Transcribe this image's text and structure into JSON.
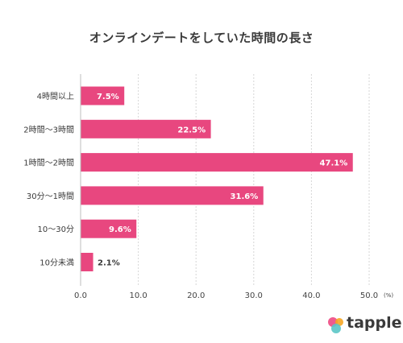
{
  "title": "オンラインデートをしていた時間の長さ",
  "brand": {
    "name": "tapple",
    "colors": [
      "#f05c8f",
      "#5bc6c6",
      "#f6a623"
    ]
  },
  "chart_data": {
    "type": "bar",
    "orientation": "horizontal",
    "categories": [
      "4時間以上",
      "2時間〜3時間",
      "1時間〜2時間",
      "30分〜1時間",
      "10〜30分",
      "10分未満"
    ],
    "values": [
      7.5,
      22.5,
      47.1,
      31.6,
      9.6,
      2.1
    ],
    "value_labels": [
      "7.5%",
      "22.5%",
      "47.1%",
      "31.6%",
      "9.6%",
      "2.1%"
    ],
    "xlim": [
      0,
      50
    ],
    "x_ticks": [
      "0.0",
      "10.0",
      "20.0",
      "30.0",
      "40.0",
      "50.0"
    ],
    "x_unit": "(%)",
    "grid": "vertical",
    "bar_color": "#e8477f"
  }
}
